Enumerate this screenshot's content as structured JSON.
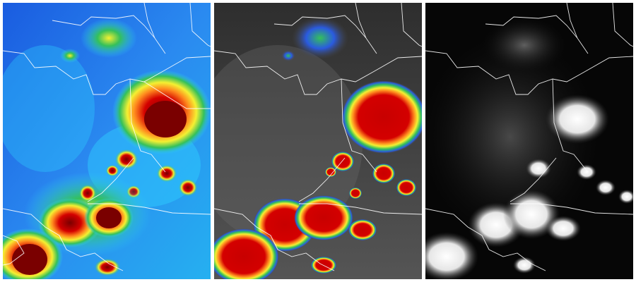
{
  "figure": {
    "panels": [
      {
        "id": "enhanced-ir",
        "kind": "color-enhanced infrared",
        "background": "#1f6fe0"
      },
      {
        "id": "water-vapor-enhanced",
        "kind": "gray with color enhancement",
        "background": "#3c3c3c"
      },
      {
        "id": "visible",
        "kind": "grayscale visible",
        "background": "#050505"
      }
    ],
    "colors": {
      "ir_low": "#1a5ce0",
      "ir_mid": "#2fd0ff",
      "green": "#34c05a",
      "yellow": "#f4f032",
      "orange": "#ff8a1e",
      "red": "#d40000",
      "dark_red": "#7a0000",
      "border": "#ffffff",
      "gray": "#4a4a4a",
      "cloud_white": "#f2f2f2"
    }
  }
}
